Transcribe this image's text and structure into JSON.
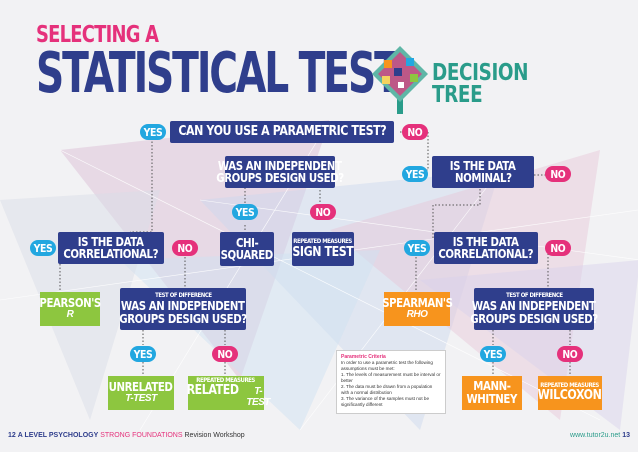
{
  "header": {
    "title_line1": "SELECTING A",
    "title_line2": "STATISTICAL TEST",
    "title_side_1": "DECISION",
    "title_side_2": "TREE"
  },
  "tree": {
    "q_parametric": "CAN YOU USE A PARAMETRIC TEST?",
    "q_parametric_yes": "YES",
    "q_parametric_no": "NO",
    "q_independent_top_1": "WAS AN INDEPENDENT",
    "q_independent_top_2": "GROUPS DESIGN USED?",
    "q_independent_top_yes": "YES",
    "q_independent_top_no": "NO",
    "q_nominal_1": "IS THE DATA",
    "q_nominal_2": "NOMINAL?",
    "q_nominal_yes": "YES",
    "q_nominal_no": "NO",
    "q_correlational_left_1": "IS THE DATA",
    "q_correlational_left_2": "CORRELATIONAL?",
    "q_correlational_left_yes": "YES",
    "q_correlational_left_no": "NO",
    "chi_squared_1": "CHI-",
    "chi_squared_2": "SQUARED",
    "sign_test_sub": "REPEATED MEASURES",
    "sign_test": "SIGN TEST",
    "q_correlational_right_1": "IS THE DATA",
    "q_correlational_right_2": "CORRELATIONAL?",
    "q_correlational_right_yes": "YES",
    "q_correlational_right_no": "NO",
    "pearsons": "PEARSON'S",
    "pearsons_r": "r",
    "tod_left_sub": "TEST OF DIFFERENCE",
    "q_independent_left_1": "WAS AN INDEPENDENT",
    "q_independent_left_2": "GROUPS DESIGN USED?",
    "q_independent_left_yes": "YES",
    "q_independent_left_no": "NO",
    "spearmans": "SPEARMAN'S",
    "spearmans_rho": "rho",
    "tod_right_sub": "TEST OF DIFFERENCE",
    "q_independent_right_1": "WAS AN INDEPENDENT",
    "q_independent_right_2": "GROUPS DESIGN USED?",
    "q_independent_right_yes": "YES",
    "q_independent_right_no": "NO",
    "unrelated": "UNRELATED",
    "unrelated_t": "t-test",
    "related_sub": "REPEATED MEASURES",
    "related": "RELATED",
    "related_t": "t-test",
    "mann_whitney_1": "MANN-",
    "mann_whitney_2": "WHITNEY",
    "wilcoxon_sub": "REPEATED MEASURES",
    "wilcoxon": "WILCOXON"
  },
  "criteria": {
    "title": "Parametric Criteria",
    "intro": "In order to use a parametric test the following assumptions must be met:",
    "item1": "1. The levels of measurement must be interval or better",
    "item2": "2. The data must be drawn from a population with a normal distribution",
    "item3": "3. The variance of the samples must not be significantly different"
  },
  "footer": {
    "page_left": "12",
    "left_a": "A LEVEL PSYCHOLOGY",
    "left_b": "STRONG FOUNDATIONS",
    "left_c": "Revision Workshop",
    "right_url": "www.tutor2u.net",
    "page_right": "13"
  },
  "colors": {
    "navy": "#2f3e8c",
    "pink": "#e5317b",
    "cyan": "#22a7e0",
    "green": "#8dc63f",
    "orange": "#f7941d",
    "teal": "#2a9c8a"
  }
}
